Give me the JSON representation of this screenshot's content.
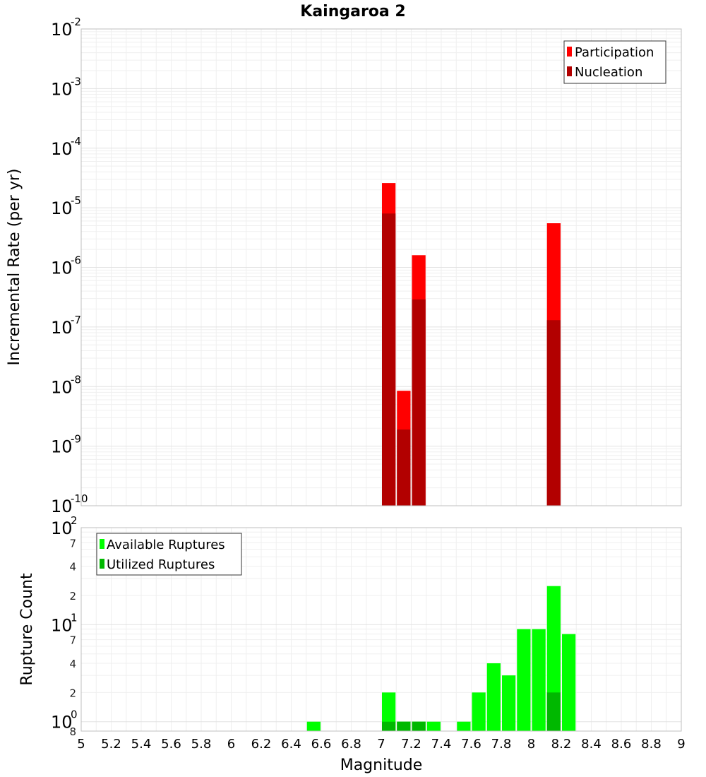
{
  "chart_data": [
    {
      "type": "bar",
      "title": "Kaingaroa 2",
      "xlabel": "",
      "ylabel": "Incremental Rate (per yr)",
      "xlim": [
        5,
        9
      ],
      "yscale": "log",
      "ylim": [
        1e-10,
        0.01
      ],
      "bin_width": 0.1,
      "legend": {
        "placement": "top-right",
        "entries": [
          "Participation",
          "Nucleation"
        ]
      },
      "series": [
        {
          "name": "Participation",
          "color": "#ff0000",
          "x": [
            7.05,
            7.15,
            7.25,
            8.15
          ],
          "values": [
            2.6e-05,
            8.5e-09,
            1.6e-06,
            5.5e-06
          ]
        },
        {
          "name": "Nucleation",
          "color": "#b20000",
          "x": [
            7.05,
            7.15,
            7.25,
            8.15
          ],
          "values": [
            8e-06,
            1.9e-09,
            2.9e-07,
            1.3e-07
          ]
        }
      ],
      "y_tick_labels": [
        {
          "base": "10",
          "exp": "-2"
        },
        {
          "base": "10",
          "exp": "-3"
        },
        {
          "base": "10",
          "exp": "-4"
        },
        {
          "base": "10",
          "exp": "-5"
        },
        {
          "base": "10",
          "exp": "-6"
        },
        {
          "base": "10",
          "exp": "-7"
        },
        {
          "base": "10",
          "exp": "-8"
        },
        {
          "base": "10",
          "exp": "-9"
        },
        {
          "base": "10",
          "exp": "-10"
        }
      ],
      "grid": true
    },
    {
      "type": "bar",
      "xlabel": "Magnitude",
      "ylabel": "Rupture Count",
      "xlim": [
        5,
        9
      ],
      "yscale": "log",
      "ylim": [
        0.8,
        100
      ],
      "bin_width": 0.1,
      "legend": {
        "placement": "top-left",
        "entries": [
          "Available Ruptures",
          "Utilized Ruptures"
        ]
      },
      "series": [
        {
          "name": "Available Ruptures",
          "color": "#00ff00",
          "x": [
            6.55,
            7.05,
            7.15,
            7.25,
            7.35,
            7.55,
            7.65,
            7.75,
            7.85,
            7.95,
            8.05,
            8.15,
            8.25
          ],
          "values": [
            1,
            2,
            1,
            1,
            1,
            1,
            2,
            4,
            3,
            9,
            9,
            25,
            8
          ]
        },
        {
          "name": "Utilized Ruptures",
          "color": "#00b800",
          "x": [
            7.05,
            7.15,
            7.25,
            8.15
          ],
          "values": [
            1,
            1,
            1,
            2
          ]
        }
      ],
      "x_tick_labels": [
        "5",
        "5.2",
        "5.4",
        "5.6",
        "5.8",
        "6",
        "6.2",
        "6.4",
        "6.6",
        "6.8",
        "7",
        "7.2",
        "7.4",
        "7.6",
        "7.8",
        "8",
        "8.2",
        "8.4",
        "8.6",
        "8.8",
        "9"
      ],
      "y_tick_labels": [
        {
          "base": "10",
          "exp": "2"
        },
        {
          "base": "",
          "exp": "7"
        },
        {
          "base": "",
          "exp": "4"
        },
        {
          "base": "",
          "exp": "2"
        },
        {
          "base": "10",
          "exp": "1"
        },
        {
          "base": "",
          "exp": "7"
        },
        {
          "base": "",
          "exp": "4"
        },
        {
          "base": "",
          "exp": "2"
        },
        {
          "base": "10",
          "exp": "0"
        },
        {
          "base": "8",
          "exp": ""
        }
      ],
      "grid": true
    }
  ]
}
